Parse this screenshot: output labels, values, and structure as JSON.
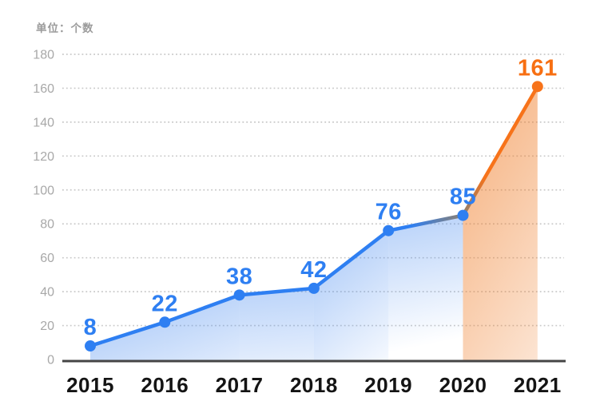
{
  "chart_data": {
    "type": "line",
    "unit_label": "单位：个数",
    "x": [
      "2015",
      "2016",
      "2017",
      "2018",
      "2019",
      "2020",
      "2021"
    ],
    "values": [
      8,
      22,
      38,
      42,
      76,
      85,
      161
    ],
    "ylim": [
      0,
      180
    ],
    "y_ticks": [
      0,
      20,
      40,
      60,
      80,
      100,
      120,
      140,
      160,
      180
    ],
    "grid": "dotted-horizontal",
    "legend": "none",
    "highlighted_last_segment": true,
    "point_series_color": [
      "blue",
      "blue",
      "blue",
      "blue",
      "blue",
      "blue",
      "orange"
    ],
    "colors": {
      "blue": "#2e7ff2",
      "blue_fill": "#4a8cf0",
      "orange": "#f7731a",
      "orange_text": "#f76f12",
      "orange_fill": "#ef7b25",
      "transition": "#8c8072",
      "axis": "#454545",
      "gridline": "#c9c9c9",
      "tick_label": "#a8a8a8",
      "x_label": "#141414",
      "unit_label_color": "#9b9b9b",
      "background": "#ffffff"
    }
  }
}
